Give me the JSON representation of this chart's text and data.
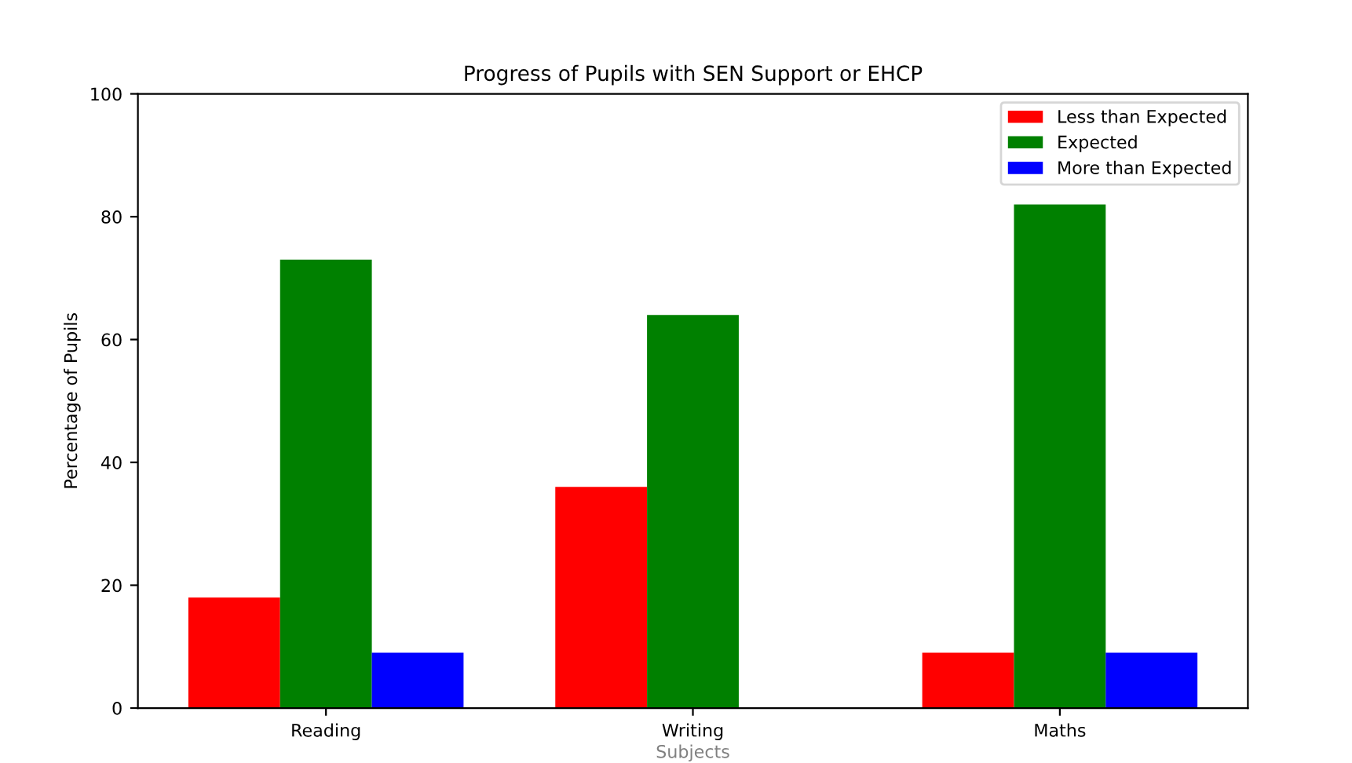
{
  "chart_data": {
    "type": "bar",
    "title": "Progress of Pupils with SEN Support or EHCP",
    "xlabel": "Subjects",
    "ylabel": "Percentage of Pupils",
    "categories": [
      "Reading",
      "Writing",
      "Maths"
    ],
    "series": [
      {
        "name": "Less than Expected",
        "color": "#ff0000",
        "values": [
          18,
          36,
          9
        ]
      },
      {
        "name": "Expected",
        "color": "#008000",
        "values": [
          73,
          64,
          82
        ]
      },
      {
        "name": "More than Expected",
        "color": "#0000ff",
        "values": [
          9,
          0,
          9
        ]
      }
    ],
    "ylim": [
      0,
      100
    ],
    "yticks": [
      0,
      20,
      40,
      60,
      80,
      100
    ],
    "legend": "top right",
    "grid": false
  }
}
